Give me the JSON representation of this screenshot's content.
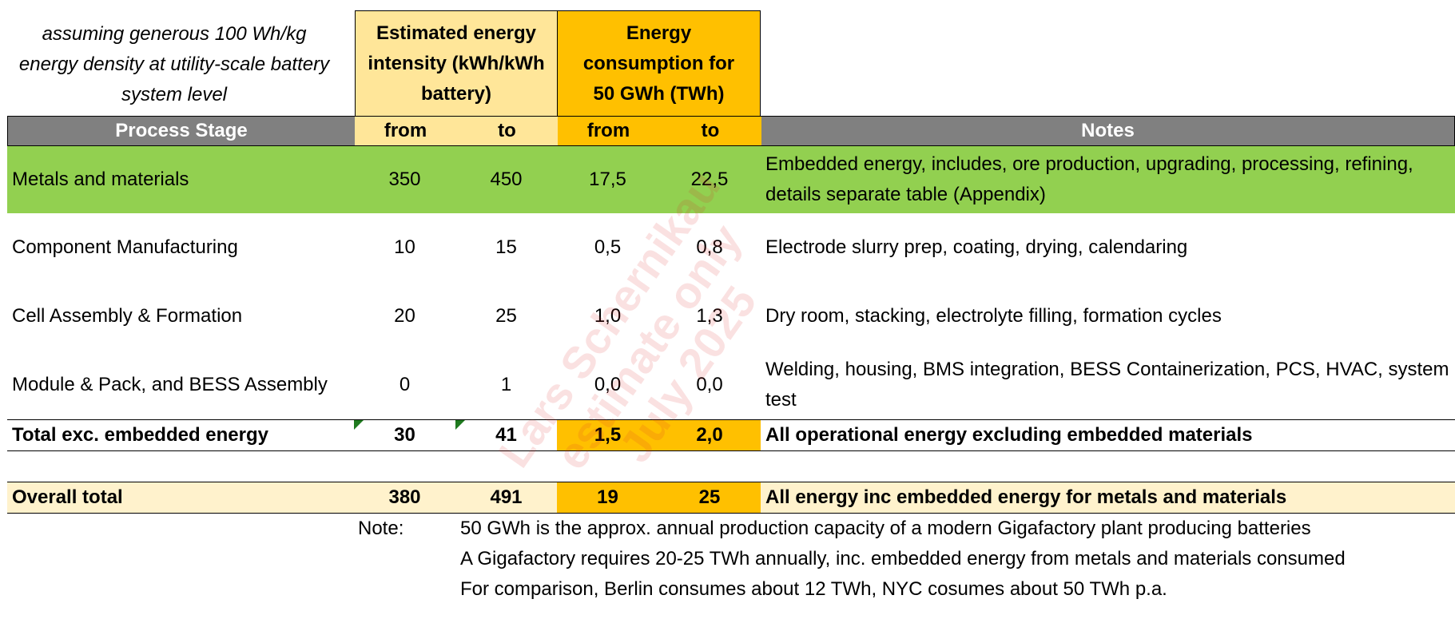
{
  "assumption_note": "assuming generous 100 Wh/kg energy density at utility-scale battery system level",
  "group_headers": {
    "intensity": "Estimated energy intensity (kWh/kWh battery)",
    "consumption": "Energy consumption for 50 GWh (TWh)"
  },
  "columns": {
    "process_stage": "Process Stage",
    "from1": "from",
    "to1": "to",
    "from2": "from",
    "to2": "to",
    "notes": "Notes"
  },
  "rows": [
    {
      "stage": "Metals and materials",
      "from1": "350",
      "to1": "450",
      "from2": "17,5",
      "to2": "22,5",
      "notes": "Embedded energy, includes, ore production, upgrading, processing, refining, details separate table (Appendix)"
    },
    {
      "stage": "Component Manufacturing",
      "from1": "10",
      "to1": "15",
      "from2": "0,5",
      "to2": "0,8",
      "notes": "Electrode slurry prep, coating, drying, calendaring"
    },
    {
      "stage": "Cell Assembly & Formation",
      "from1": "20",
      "to1": "25",
      "from2": "1,0",
      "to2": "1,3",
      "notes": "Dry room, stacking, electrolyte filling, formation cycles"
    },
    {
      "stage": "Module & Pack, and BESS Assembly",
      "from1": "0",
      "to1": "1",
      "from2": "0,0",
      "to2": "0,0",
      "notes": "Welding, housing, BMS integration, BESS Containerization, PCS, HVAC, system test"
    }
  ],
  "total_exc": {
    "stage": "Total exc. embedded energy",
    "from1": "30",
    "to1": "41",
    "from2": "1,5",
    "to2": "2,0",
    "notes": "All operational energy excluding embedded materials"
  },
  "overall": {
    "stage": "Overall total",
    "from1": "380",
    "to1": "491",
    "from2": "19",
    "to2": "25",
    "notes": "All energy inc embedded energy for metals and materials"
  },
  "footnote": {
    "label": "Note:",
    "lines": [
      "50 GWh is the approx. annual production capacity of a modern Gigafactory plant producing batteries",
      "A Gigafactory requires 20-25 TWh annually, inc. embedded energy from metals and materials consumed",
      "For comparison, Berlin consumes about 12 TWh, NYC cosumes about 50 TWh p.a."
    ]
  },
  "watermark": {
    "lines": [
      "Lars Schernikau",
      "estimate only",
      "July 2025"
    ]
  },
  "colors": {
    "header_gray": "#808080",
    "light_yellow": "#ffe699",
    "orange": "#ffc000",
    "green": "#92d050",
    "total_row": "#fff2cc"
  }
}
